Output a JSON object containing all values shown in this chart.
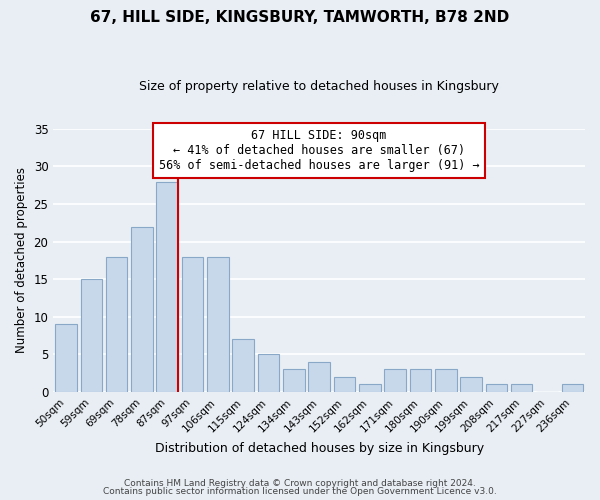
{
  "title": "67, HILL SIDE, KINGSBURY, TAMWORTH, B78 2ND",
  "subtitle": "Size of property relative to detached houses in Kingsbury",
  "xlabel": "Distribution of detached houses by size in Kingsbury",
  "ylabel": "Number of detached properties",
  "categories": [
    "50sqm",
    "59sqm",
    "69sqm",
    "78sqm",
    "87sqm",
    "97sqm",
    "106sqm",
    "115sqm",
    "124sqm",
    "134sqm",
    "143sqm",
    "152sqm",
    "162sqm",
    "171sqm",
    "180sqm",
    "190sqm",
    "199sqm",
    "208sqm",
    "217sqm",
    "227sqm",
    "236sqm"
  ],
  "values": [
    9,
    15,
    18,
    22,
    28,
    18,
    18,
    7,
    5,
    3,
    4,
    2,
    1,
    3,
    3,
    3,
    2,
    1,
    1,
    0,
    1
  ],
  "bar_color": "#c8d8eb",
  "bar_edge_color": "#89a8c8",
  "vline_color": "#cc0000",
  "annotation_text": "67 HILL SIDE: 90sqm\n← 41% of detached houses are smaller (67)\n56% of semi-detached houses are larger (91) →",
  "annotation_box_color": "white",
  "annotation_box_edge": "#cc0000",
  "ylim": [
    0,
    35
  ],
  "yticks": [
    0,
    5,
    10,
    15,
    20,
    25,
    30,
    35
  ],
  "footer_line1": "Contains HM Land Registry data © Crown copyright and database right 2024.",
  "footer_line2": "Contains public sector information licensed under the Open Government Licence v3.0.",
  "background_color": "#e8eef4",
  "grid_color": "white",
  "title_fontsize": 11,
  "subtitle_fontsize": 9
}
